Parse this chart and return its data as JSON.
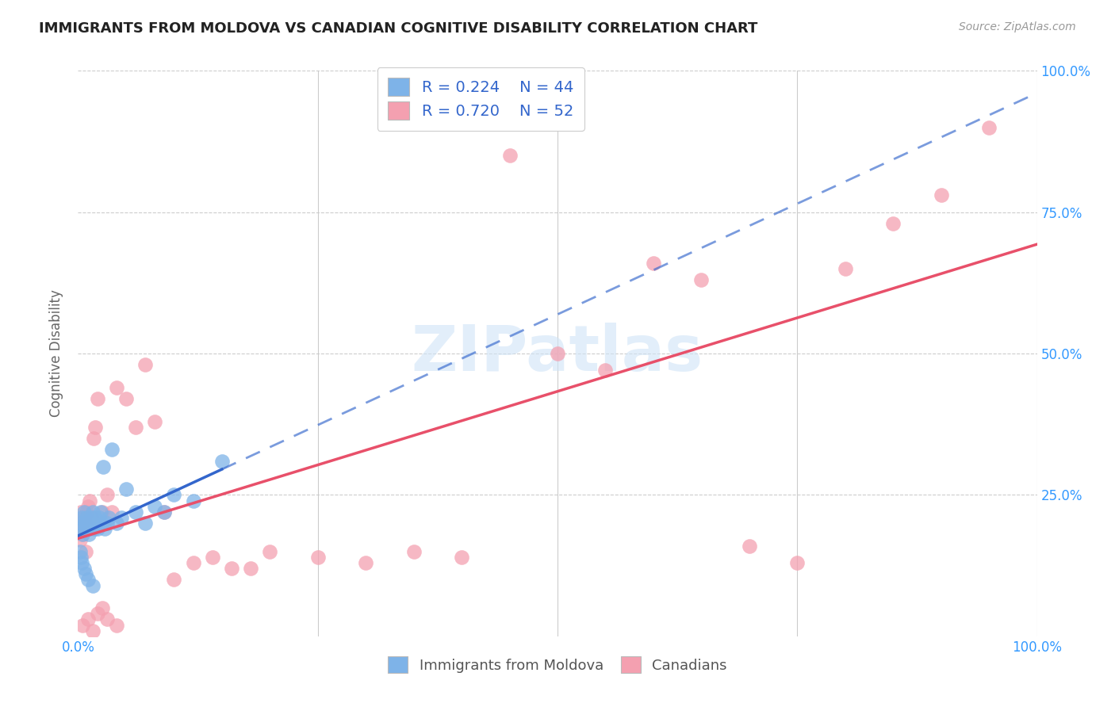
{
  "title": "IMMIGRANTS FROM MOLDOVA VS CANADIAN COGNITIVE DISABILITY CORRELATION CHART",
  "source": "Source: ZipAtlas.com",
  "ylabel": "Cognitive Disability",
  "legend_label_blue": "Immigrants from Moldova",
  "legend_label_pink": "Canadians",
  "legend_r_blue": "R = 0.224",
  "legend_n_blue": "N = 44",
  "legend_r_pink": "R = 0.720",
  "legend_n_pink": "N = 52",
  "blue_color": "#7EB3E8",
  "pink_color": "#F4A0B0",
  "blue_line_color": "#3366CC",
  "pink_line_color": "#E8506A",
  "watermark": "ZIPatlas",
  "blue_scatter_x": [
    0.002,
    0.003,
    0.004,
    0.005,
    0.006,
    0.007,
    0.008,
    0.009,
    0.01,
    0.011,
    0.012,
    0.013,
    0.014,
    0.015,
    0.016,
    0.017,
    0.018,
    0.019,
    0.02,
    0.022,
    0.024,
    0.025,
    0.026,
    0.028,
    0.03,
    0.032,
    0.035,
    0.04,
    0.045,
    0.05,
    0.06,
    0.07,
    0.08,
    0.09,
    0.1,
    0.12,
    0.15,
    0.002,
    0.003,
    0.004,
    0.006,
    0.008,
    0.01,
    0.015
  ],
  "blue_scatter_y": [
    0.2,
    0.19,
    0.21,
    0.18,
    0.22,
    0.2,
    0.19,
    0.21,
    0.2,
    0.18,
    0.19,
    0.2,
    0.21,
    0.22,
    0.2,
    0.19,
    0.21,
    0.2,
    0.19,
    0.21,
    0.22,
    0.2,
    0.3,
    0.19,
    0.2,
    0.21,
    0.33,
    0.2,
    0.21,
    0.26,
    0.22,
    0.2,
    0.23,
    0.22,
    0.25,
    0.24,
    0.31,
    0.15,
    0.14,
    0.13,
    0.12,
    0.11,
    0.1,
    0.09
  ],
  "pink_scatter_x": [
    0.001,
    0.002,
    0.003,
    0.004,
    0.005,
    0.006,
    0.007,
    0.008,
    0.009,
    0.01,
    0.012,
    0.014,
    0.016,
    0.018,
    0.02,
    0.025,
    0.03,
    0.035,
    0.04,
    0.05,
    0.06,
    0.07,
    0.08,
    0.09,
    0.1,
    0.12,
    0.14,
    0.16,
    0.18,
    0.2,
    0.25,
    0.3,
    0.35,
    0.4,
    0.45,
    0.5,
    0.55,
    0.6,
    0.65,
    0.7,
    0.75,
    0.8,
    0.85,
    0.9,
    0.95,
    0.005,
    0.01,
    0.015,
    0.02,
    0.025,
    0.03,
    0.04
  ],
  "pink_scatter_y": [
    0.2,
    0.17,
    0.22,
    0.19,
    0.18,
    0.21,
    0.2,
    0.15,
    0.22,
    0.23,
    0.24,
    0.21,
    0.35,
    0.37,
    0.42,
    0.22,
    0.25,
    0.22,
    0.44,
    0.42,
    0.37,
    0.48,
    0.38,
    0.22,
    0.1,
    0.13,
    0.14,
    0.12,
    0.12,
    0.15,
    0.14,
    0.13,
    0.15,
    0.14,
    0.85,
    0.5,
    0.47,
    0.66,
    0.63,
    0.16,
    0.13,
    0.65,
    0.73,
    0.78,
    0.9,
    0.02,
    0.03,
    0.01,
    0.04,
    0.05,
    0.03,
    0.02
  ]
}
